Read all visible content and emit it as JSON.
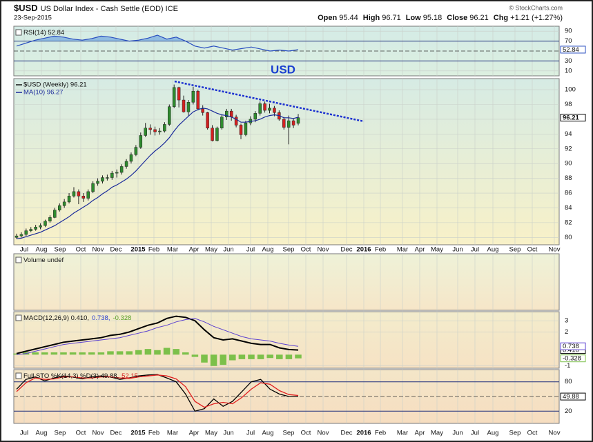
{
  "header": {
    "ticker": "$USD",
    "name": "US Dollar Index - Cash Settle (EOD) ICE",
    "date": "23-Sep-2015",
    "credit": "© StockCharts.com",
    "quote": [
      {
        "label": "Open",
        "value": 95.44
      },
      {
        "label": "High",
        "value": 96.71
      },
      {
        "label": "Low",
        "value": 95.18
      },
      {
        "label": "Close",
        "value": 96.21
      },
      {
        "label": "Chg",
        "value": "+1.21 (+1.27%)"
      }
    ]
  },
  "annotation": "USD",
  "x_labels": [
    "Jul",
    "Aug",
    "Sep",
    "Oct",
    "Nov",
    "Dec",
    "2015",
    "Feb",
    "Mar",
    "Apr",
    "May",
    "Jun",
    "Jul",
    "Aug",
    "Sep",
    "Oct",
    "Nov",
    "Dec",
    "2016",
    "Feb",
    "Mar",
    "Apr",
    "May",
    "Jun",
    "Jul",
    "Aug",
    "Sep",
    "Oct",
    "Nov"
  ],
  "chart_data": [
    {
      "type": "line",
      "legend": [
        {
          "text": "RSI(14) 52.84",
          "color": "#111"
        }
      ],
      "ylim": [
        0,
        100
      ],
      "yticks": [
        90,
        70,
        30,
        10
      ],
      "bands": [
        70,
        30
      ],
      "center_line": 50,
      "grid": true,
      "series": [
        {
          "color": "#2a4fc0",
          "fill": "#7fb0e0",
          "label_box": true,
          "values": [
            60,
            66,
            72,
            76,
            80,
            78,
            74,
            72,
            75,
            80,
            78,
            74,
            70,
            72,
            76,
            82,
            74,
            78,
            70,
            60,
            56,
            60,
            56,
            52,
            55,
            58,
            54,
            50,
            52,
            50,
            52.84
          ]
        }
      ]
    },
    {
      "type": "candlestick",
      "legend": [
        {
          "text": "$USD (Weekly) 96.21",
          "color": "#111"
        },
        {
          "text": "MA(10) 96.27",
          "color": "#1a2a9a"
        }
      ],
      "ylim": [
        79,
        101.5
      ],
      "yticks": [
        80,
        82,
        84,
        86,
        88,
        90,
        92,
        94,
        96,
        98,
        100
      ],
      "grid": true,
      "up_color": "#2e8b2e",
      "down_color": "#d42020",
      "open": [
        80.0,
        80.2,
        80.4,
        80.9,
        81.1,
        81.4,
        81.6,
        82.2,
        82.7,
        83.7,
        84.3,
        84.8,
        85.6,
        86.2,
        85.6,
        85.3,
        86.2,
        87.3,
        87.6,
        88.1,
        88.1,
        88.7,
        88.8,
        89.6,
        90.3,
        91.2,
        92.2,
        93.8,
        94.8,
        94.6,
        94.3,
        94.4,
        95.3,
        97.7,
        100.3,
        98.6,
        97.0,
        98.3,
        99.8,
        97.4,
        96.9,
        94.8,
        93.1,
        94.8,
        96.3,
        97.1,
        96.3,
        95.2,
        93.9,
        95.5,
        96.0,
        96.8,
        98.1,
        97.2,
        97.5,
        96.9,
        96.0,
        94.9,
        95.8,
        95.44
      ],
      "high": [
        80.5,
        80.7,
        81.2,
        81.4,
        81.7,
        81.9,
        82.4,
        83.0,
        84.0,
        84.6,
        85.2,
        86.0,
        86.8,
        86.5,
        86.0,
        86.5,
        87.6,
        88.0,
        88.4,
        88.5,
        89.0,
        89.2,
        89.9,
        90.6,
        91.5,
        92.5,
        94.2,
        95.5,
        95.3,
        95.0,
        94.8,
        95.6,
        98.0,
        100.7,
        100.4,
        99.2,
        98.6,
        100.4,
        100.0,
        97.9,
        97.0,
        95.2,
        95.0,
        96.6,
        97.4,
        97.4,
        96.6,
        95.4,
        95.8,
        96.4,
        97.1,
        98.4,
        98.4,
        98.1,
        97.8,
        97.2,
        96.3,
        96.5,
        96.1,
        96.71
      ],
      "low": [
        79.8,
        80.0,
        80.2,
        80.7,
        80.9,
        81.1,
        81.4,
        82.0,
        82.6,
        83.5,
        84.0,
        84.6,
        85.4,
        84.5,
        84.8,
        85.0,
        86.0,
        87.0,
        87.3,
        87.7,
        87.8,
        88.1,
        88.5,
        89.3,
        90.0,
        91.0,
        92.0,
        93.6,
        93.9,
        93.8,
        93.9,
        94.2,
        95.1,
        97.5,
        97.6,
        96.9,
        96.5,
        98.0,
        97.2,
        96.5,
        94.6,
        93.0,
        93.0,
        94.6,
        95.9,
        95.8,
        94.9,
        93.3,
        93.7,
        95.2,
        95.6,
        96.5,
        96.9,
        96.8,
        96.4,
        95.8,
        94.6,
        92.6,
        94.8,
        95.18
      ],
      "close": [
        80.2,
        80.4,
        80.9,
        81.1,
        81.4,
        81.6,
        82.2,
        82.7,
        83.7,
        84.3,
        84.8,
        85.6,
        86.2,
        85.6,
        85.3,
        86.2,
        87.3,
        87.6,
        88.1,
        88.1,
        88.7,
        88.8,
        89.6,
        90.3,
        91.2,
        92.2,
        93.8,
        94.8,
        94.6,
        94.3,
        94.4,
        95.3,
        97.7,
        100.3,
        98.6,
        97.0,
        98.3,
        99.8,
        97.4,
        96.9,
        94.8,
        93.1,
        94.8,
        96.3,
        97.1,
        96.3,
        95.2,
        93.9,
        95.5,
        96.0,
        96.8,
        98.1,
        97.2,
        97.5,
        96.9,
        96.0,
        94.9,
        95.8,
        95.2,
        96.21
      ],
      "series": [
        {
          "color": "#1a2a9a",
          "values": [
            79.8,
            79.9,
            80.1,
            80.3,
            80.5,
            80.7,
            81.0,
            81.3,
            81.6,
            82.0,
            82.4,
            82.8,
            83.3,
            83.7,
            84.1,
            84.5,
            85.0,
            85.4,
            85.9,
            86.3,
            86.8,
            87.1,
            87.5,
            87.9,
            88.4,
            89.0,
            89.7,
            90.4,
            91.1,
            91.7,
            92.2,
            92.8,
            93.5,
            94.4,
            95.2,
            95.8,
            96.4,
            97.0,
            97.3,
            97.5,
            97.4,
            97.1,
            96.8,
            96.6,
            96.5,
            96.3,
            96.0,
            95.6,
            95.6,
            95.7,
            95.8,
            96.0,
            96.3,
            96.5,
            96.6,
            96.5,
            96.2,
            96.2,
            96.1,
            96.27
          ]
        }
      ]
    },
    {
      "type": "bar",
      "legend": [
        {
          "text": "Volume undef",
          "color": "#111"
        }
      ]
    },
    {
      "type": "line",
      "legend": [
        {
          "text": "MACD(12,26,9) 0.410,",
          "color": "#111"
        },
        {
          "text": "0.738,",
          "color": "#2a3fd0"
        },
        {
          "text": "-0.328",
          "color": "#5aa02a"
        }
      ],
      "ylim": [
        -1.2,
        3.8
      ],
      "yticks": [
        3,
        2,
        -1
      ],
      "grid": true,
      "histogram": {
        "color": "#7cc04a",
        "label_box": true,
        "values": [
          0.1,
          0.2,
          0.2,
          0.2,
          0.2,
          0.2,
          0.2,
          0.2,
          0.2,
          0.2,
          0.3,
          0.3,
          0.3,
          0.4,
          0.5,
          0.4,
          0.6,
          0.5,
          0.2,
          -0.2,
          -0.7,
          -1.0,
          -0.9,
          -0.5,
          -0.4,
          -0.4,
          -0.4,
          -0.3,
          -0.4,
          -0.4,
          -0.328
        ]
      },
      "series": [
        {
          "color": "#000",
          "width": 2,
          "label_box": true,
          "values": [
            0.1,
            0.3,
            0.5,
            0.7,
            0.9,
            1.1,
            1.2,
            1.3,
            1.4,
            1.5,
            1.7,
            1.8,
            2.0,
            2.3,
            2.6,
            2.8,
            3.2,
            3.4,
            3.3,
            3.0,
            2.2,
            1.5,
            1.3,
            1.4,
            1.2,
            1.0,
            0.9,
            0.9,
            0.6,
            0.45,
            0.41
          ],
          "value_labels": [
            null,
            null,
            null,
            null,
            null,
            null,
            null,
            null,
            null,
            null,
            null,
            null,
            null,
            null,
            null,
            null,
            null,
            null,
            null,
            null,
            null,
            null,
            null,
            null,
            null,
            null,
            null,
            null,
            null,
            null,
            "0.410"
          ]
        },
        {
          "color": "#5a3fd0",
          "width": 1,
          "label_box": true,
          "values": [
            0.0,
            0.1,
            0.3,
            0.5,
            0.7,
            0.9,
            1.0,
            1.1,
            1.2,
            1.3,
            1.4,
            1.5,
            1.7,
            1.9,
            2.1,
            2.4,
            2.6,
            2.9,
            3.1,
            3.2,
            2.9,
            2.5,
            2.2,
            1.9,
            1.6,
            1.4,
            1.3,
            1.2,
            1.0,
            0.85,
            0.738
          ]
        }
      ]
    },
    {
      "type": "line",
      "legend": [
        {
          "text": "Full STO %K(14,3) %D(3) 49.88,",
          "color": "#111"
        },
        {
          "text": "52.15",
          "color": "#d42020"
        }
      ],
      "ylim": [
        -5,
        105
      ],
      "yticks": [
        80,
        20
      ],
      "bands": [
        80,
        20
      ],
      "center_line": 50,
      "grid": true,
      "series": [
        {
          "color": "#000",
          "width": 1.3,
          "label_box": true,
          "values": [
            65,
            85,
            90,
            82,
            88,
            92,
            90,
            86,
            90,
            92,
            90,
            85,
            88,
            92,
            94,
            95,
            88,
            80,
            55,
            20,
            25,
            45,
            30,
            40,
            60,
            80,
            85,
            65,
            55,
            50,
            49.88
          ]
        },
        {
          "color": "#e02020",
          "width": 1.3,
          "values": [
            60,
            78,
            88,
            85,
            86,
            90,
            90,
            88,
            88,
            90,
            90,
            88,
            87,
            90,
            92,
            94,
            92,
            86,
            70,
            40,
            28,
            35,
            38,
            35,
            48,
            65,
            78,
            75,
            62,
            54,
            52.15
          ]
        }
      ]
    }
  ]
}
